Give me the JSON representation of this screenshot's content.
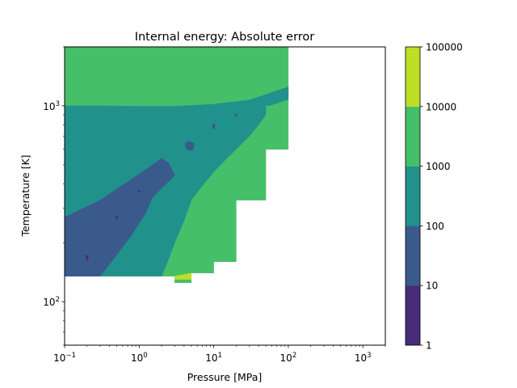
{
  "chart_data": {
    "type": "contourf",
    "title": "Internal energy: Absolute error",
    "xlabel": "Pressure [MPa]",
    "ylabel": "Temperature [K]",
    "xscale": "log",
    "yscale": "log",
    "xlim": [
      0.1,
      2000
    ],
    "ylim": [
      60,
      2000
    ],
    "x_ticks": [
      {
        "value": 0.1,
        "base": "10",
        "exp": "−1"
      },
      {
        "value": 1,
        "base": "10",
        "exp": "0"
      },
      {
        "value": 10,
        "base": "10",
        "exp": "1"
      },
      {
        "value": 100,
        "base": "10",
        "exp": "2"
      },
      {
        "value": 1000,
        "base": "10",
        "exp": "3"
      }
    ],
    "y_ticks": [
      {
        "value": 100,
        "base": "10",
        "exp": "2"
      },
      {
        "value": 1000,
        "base": "10",
        "exp": "3"
      }
    ],
    "colorbar": {
      "levels": [
        1,
        10,
        100,
        1000,
        10000,
        100000
      ],
      "labels": [
        "1",
        "10",
        "100",
        "1000",
        "10000",
        "100000"
      ],
      "colors": [
        "#472c7a",
        "#3b5a8c",
        "#21918c",
        "#46bf6a",
        "#bddf26"
      ]
    },
    "regions": [
      {
        "band": "1000-10000",
        "color": "#46bf6a",
        "polygons": [
          [
            [
              0.1,
              2000
            ],
            [
              100,
              2000
            ],
            [
              100,
              600
            ],
            [
              50,
              600
            ],
            [
              50,
              330
            ],
            [
              20,
              330
            ],
            [
              20,
              160
            ],
            [
              10,
              160
            ],
            [
              10,
              140
            ],
            [
              5,
              140
            ],
            [
              5,
              125
            ],
            [
              3,
              125
            ],
            [
              3,
              135
            ],
            [
              0.1,
              135
            ]
          ]
        ]
      },
      {
        "band": "100-1000",
        "color": "#21918c",
        "polygons": [
          [
            [
              0.1,
              1000
            ],
            [
              0.3,
              1000
            ],
            [
              1,
              995
            ],
            [
              3,
              995
            ],
            [
              10,
              1020
            ],
            [
              30,
              1070
            ],
            [
              100,
              1250
            ],
            [
              100,
              1080
            ],
            [
              60,
              1010
            ],
            [
              50,
              1000
            ],
            [
              50,
              900
            ],
            [
              40,
              800
            ],
            [
              30,
              700
            ],
            [
              20,
              600
            ],
            [
              15,
              540
            ],
            [
              10,
              460
            ],
            [
              7,
              390
            ],
            [
              5,
              330
            ],
            [
              4,
              260
            ],
            [
              3,
              200
            ],
            [
              2.4,
              160
            ],
            [
              2,
              135
            ],
            [
              0.1,
              135
            ]
          ]
        ]
      },
      {
        "band": "10-100",
        "color": "#3b5a8c",
        "polygons": [
          [
            [
              0.1,
              270
            ],
            [
              0.3,
              330
            ],
            [
              0.7,
              410
            ],
            [
              1.3,
              480
            ],
            [
              2,
              540
            ],
            [
              2.5,
              510
            ],
            [
              3,
              440
            ],
            [
              2,
              380
            ],
            [
              1.5,
              340
            ],
            [
              1.2,
              280
            ],
            [
              0.8,
              220
            ],
            [
              0.4,
              155
            ],
            [
              0.3,
              135
            ],
            [
              0.1,
              135
            ]
          ],
          [
            [
              4.2,
              650
            ],
            [
              4.8,
              660
            ],
            [
              5.5,
              640
            ],
            [
              5.3,
              600
            ],
            [
              4.7,
              590
            ],
            [
              4.2,
              610
            ]
          ],
          [
            [
              9.5,
              800
            ],
            [
              10.5,
              810
            ],
            [
              10.2,
              760
            ],
            [
              9.8,
              765
            ]
          ],
          [
            [
              19,
              905
            ],
            [
              21,
              910
            ],
            [
              20,
              880
            ]
          ]
        ]
      },
      {
        "band": "1-10",
        "color": "#472c7a",
        "polygons": [
          [
            [
              0.19,
              172
            ],
            [
              0.21,
              172
            ],
            [
              0.2,
              160
            ]
          ],
          [
            [
              0.48,
              273
            ],
            [
              0.52,
              273
            ],
            [
              0.5,
              262
            ]
          ],
          [
            [
              0.95,
              368
            ],
            [
              1.05,
              368
            ],
            [
              1,
              360
            ]
          ]
        ]
      },
      {
        "band": "10000-100000",
        "color": "#bddf26",
        "polygons": [
          [
            [
              3,
              135
            ],
            [
              5,
              140
            ],
            [
              5,
              130
            ],
            [
              3,
              130
            ]
          ]
        ]
      }
    ]
  }
}
